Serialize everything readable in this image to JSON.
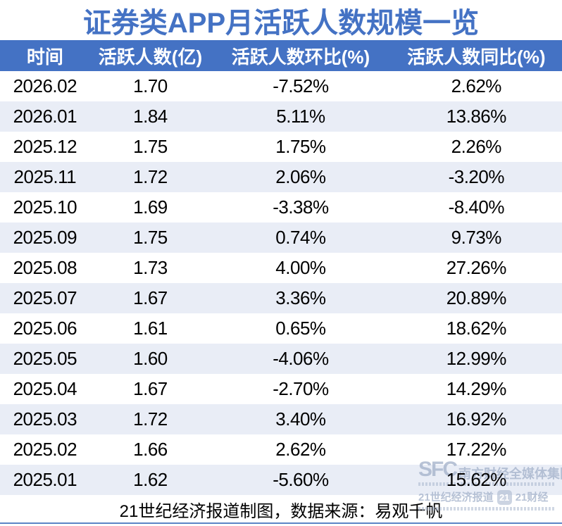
{
  "title": "证券类APP月活跃人数规模一览",
  "accent_color": "#4472C4",
  "row_stripe_color": "#E9EDF6",
  "chart_data": {
    "type": "table",
    "title": "证券类APP月活跃人数规模一览",
    "columns": [
      "时间",
      "活跃人数(亿)",
      "活跃人数环比(%)",
      "活跃人数同比(%)"
    ],
    "rows": [
      [
        "2026.02",
        "1.70",
        "-7.52%",
        "2.62%"
      ],
      [
        "2026.01",
        "1.84",
        "5.11%",
        "13.86%"
      ],
      [
        "2025.12",
        "1.75",
        "1.75%",
        "2.26%"
      ],
      [
        "2025.11",
        "1.72",
        "2.06%",
        "-3.20%"
      ],
      [
        "2025.10",
        "1.69",
        "-3.38%",
        "-8.40%"
      ],
      [
        "2025.09",
        "1.75",
        "0.74%",
        "9.73%"
      ],
      [
        "2025.08",
        "1.73",
        "4.00%",
        "27.26%"
      ],
      [
        "2025.07",
        "1.67",
        "3.36%",
        "20.89%"
      ],
      [
        "2025.06",
        "1.61",
        "0.65%",
        "18.62%"
      ],
      [
        "2025.05",
        "1.60",
        "-4.06%",
        "12.99%"
      ],
      [
        "2025.04",
        "1.67",
        "-2.70%",
        "14.29%"
      ],
      [
        "2025.03",
        "1.72",
        "3.40%",
        "16.92%"
      ],
      [
        "2025.02",
        "1.66",
        "2.62%",
        "17.22%"
      ],
      [
        "2025.01",
        "1.62",
        "-5.60%",
        "15.62%"
      ]
    ],
    "layout": {
      "striped": true,
      "header_background": "#4472C4",
      "header_text_color": "#ffffff",
      "alignment": "center"
    }
  },
  "footer": {
    "note": "21世纪经济报道制图，数据来源：易观千帆"
  },
  "watermark": {
    "sfc": "SFC",
    "group_name": "南方财经全媒体集团",
    "brand_1": "21世纪经济报道",
    "logo_21": "21",
    "brand_2": "21财经"
  }
}
